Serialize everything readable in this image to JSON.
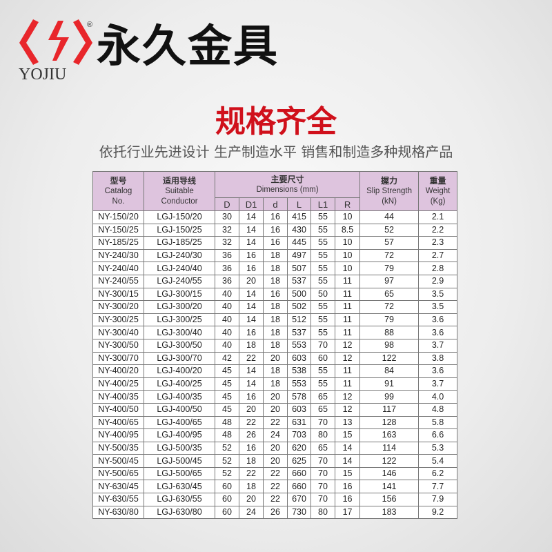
{
  "brand": {
    "logo_text": "YOJIU",
    "registered": "®",
    "name": "永久金具",
    "logo_color": "#e8262b"
  },
  "title": "规格齐全",
  "subtitle": "依托行业先进设计 生产制造水平 销售和制造多种规格产品",
  "table": {
    "header": {
      "catalog": {
        "cn": "型号",
        "en1": "Catalog",
        "en2": "No."
      },
      "conductor": {
        "cn": "适用导线",
        "en1": "Suitable",
        "en2": "Conductor"
      },
      "dimensions": {
        "cn": "主要尺寸",
        "en": "Dimensions (mm)"
      },
      "sub": [
        "D",
        "D1",
        "d",
        "L",
        "L1",
        "R"
      ],
      "slip": {
        "cn": "握力",
        "en1": "Slip Strength",
        "en2": "(kN)"
      },
      "weight": {
        "cn": "重量",
        "en1": "Weight",
        "en2": "(Kg)"
      }
    },
    "rows": [
      [
        "NY-150/20",
        "LGJ-150/20",
        "30",
        "14",
        "16",
        "415",
        "55",
        "10",
        "44",
        "2.1"
      ],
      [
        "NY-150/25",
        "LGJ-150/25",
        "32",
        "14",
        "16",
        "430",
        "55",
        "8.5",
        "52",
        "2.2"
      ],
      [
        "NY-185/25",
        "LGJ-185/25",
        "32",
        "14",
        "16",
        "445",
        "55",
        "10",
        "57",
        "2.3"
      ],
      [
        "NY-240/30",
        "LGJ-240/30",
        "36",
        "16",
        "18",
        "497",
        "55",
        "10",
        "72",
        "2.7"
      ],
      [
        "NY-240/40",
        "LGJ-240/40",
        "36",
        "16",
        "18",
        "507",
        "55",
        "10",
        "79",
        "2.8"
      ],
      [
        "NY-240/55",
        "LGJ-240/55",
        "36",
        "20",
        "18",
        "537",
        "55",
        "11",
        "97",
        "2.9"
      ],
      [
        "NY-300/15",
        "LGJ-300/15",
        "40",
        "14",
        "16",
        "500",
        "50",
        "11",
        "65",
        "3.5"
      ],
      [
        "NY-300/20",
        "LGJ-300/20",
        "40",
        "14",
        "18",
        "502",
        "55",
        "11",
        "72",
        "3.5"
      ],
      [
        "NY-300/25",
        "LGJ-300/25",
        "40",
        "14",
        "18",
        "512",
        "55",
        "11",
        "79",
        "3.6"
      ],
      [
        "NY-300/40",
        "LGJ-300/40",
        "40",
        "16",
        "18",
        "537",
        "55",
        "11",
        "88",
        "3.6"
      ],
      [
        "NY-300/50",
        "LGJ-300/50",
        "40",
        "18",
        "18",
        "553",
        "70",
        "12",
        "98",
        "3.7"
      ],
      [
        "NY-300/70",
        "LGJ-300/70",
        "42",
        "22",
        "20",
        "603",
        "60",
        "12",
        "122",
        "3.8"
      ],
      [
        "NY-400/20",
        "LGJ-400/20",
        "45",
        "14",
        "18",
        "538",
        "55",
        "11",
        "84",
        "3.6"
      ],
      [
        "NY-400/25",
        "LGJ-400/25",
        "45",
        "14",
        "18",
        "553",
        "55",
        "11",
        "91",
        "3.7"
      ],
      [
        "NY-400/35",
        "LGJ-400/35",
        "45",
        "16",
        "20",
        "578",
        "65",
        "12",
        "99",
        "4.0"
      ],
      [
        "NY-400/50",
        "LGJ-400/50",
        "45",
        "20",
        "20",
        "603",
        "65",
        "12",
        "117",
        "4.8"
      ],
      [
        "NY-400/65",
        "LGJ-400/65",
        "48",
        "22",
        "22",
        "631",
        "70",
        "13",
        "128",
        "5.8"
      ],
      [
        "NY-400/95",
        "LGJ-400/95",
        "48",
        "26",
        "24",
        "703",
        "80",
        "15",
        "163",
        "6.6"
      ],
      [
        "NY-500/35",
        "LGJ-500/35",
        "52",
        "16",
        "20",
        "620",
        "65",
        "14",
        "114",
        "5.3"
      ],
      [
        "NY-500/45",
        "LGJ-500/45",
        "52",
        "18",
        "20",
        "625",
        "70",
        "14",
        "122",
        "5.4"
      ],
      [
        "NY-500/65",
        "LGJ-500/65",
        "52",
        "22",
        "22",
        "660",
        "70",
        "15",
        "146",
        "6.2"
      ],
      [
        "NY-630/45",
        "LGJ-630/45",
        "60",
        "18",
        "22",
        "660",
        "70",
        "16",
        "141",
        "7.7"
      ],
      [
        "NY-630/55",
        "LGJ-630/55",
        "60",
        "20",
        "22",
        "670",
        "70",
        "16",
        "156",
        "7.9"
      ],
      [
        "NY-630/80",
        "LGJ-630/80",
        "60",
        "24",
        "26",
        "730",
        "80",
        "17",
        "183",
        "9.2"
      ]
    ]
  }
}
